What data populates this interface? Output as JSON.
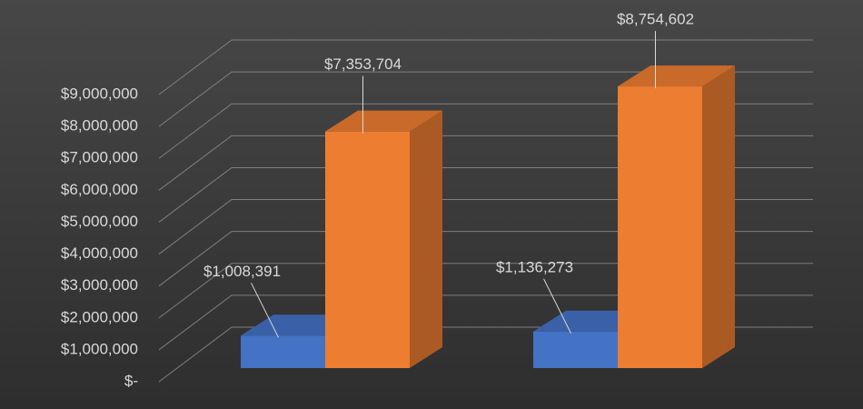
{
  "chart_data": {
    "type": "bar3d",
    "categories": [
      null,
      null
    ],
    "series": [
      {
        "color": "#4472c4",
        "values": [
          1008391,
          1136273
        ],
        "value_labels": [
          "$1,008,391",
          "$1,136,273"
        ]
      },
      {
        "color": "#ed7d31",
        "values": [
          7353704,
          8754602
        ],
        "value_labels": [
          "$7,353,704",
          "$8,754,602"
        ]
      }
    ],
    "ylim": [
      0,
      9000000
    ],
    "yticks": [
      {
        "value": 0,
        "label": "$-"
      },
      {
        "value": 1000000,
        "label": "$1,000,000"
      },
      {
        "value": 2000000,
        "label": "$2,000,000"
      },
      {
        "value": 3000000,
        "label": "$3,000,000"
      },
      {
        "value": 4000000,
        "label": "$4,000,000"
      },
      {
        "value": 5000000,
        "label": "$5,000,000"
      },
      {
        "value": 6000000,
        "label": "$6,000,000"
      },
      {
        "value": 7000000,
        "label": "$7,000,000"
      },
      {
        "value": 8000000,
        "label": "$8,000,000"
      },
      {
        "value": 9000000,
        "label": "$9,000,000"
      }
    ],
    "grid": true
  }
}
